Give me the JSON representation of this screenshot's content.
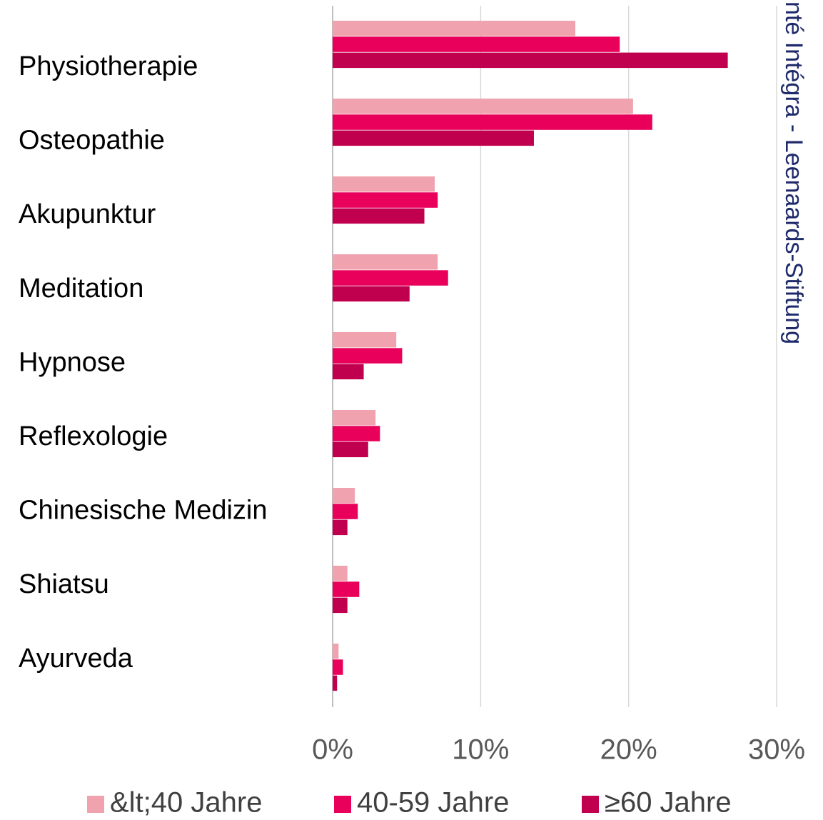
{
  "chart_data": {
    "type": "bar",
    "orientation": "horizontal",
    "categories": [
      "Physiotherapie",
      "Osteopathie",
      "Akupunktur",
      "Meditation",
      "Hypnose",
      "Reflexologie",
      "Chinesische Medizin",
      "Shiatsu",
      "Ayurveda"
    ],
    "series": [
      {
        "name": "&lt;40 Jahre",
        "color": "#f0a3ae",
        "values": [
          16.4,
          20.3,
          6.9,
          7.1,
          4.3,
          2.9,
          1.5,
          1.0,
          0.4
        ]
      },
      {
        "name": "40-59 Jahre",
        "color": "#e8005a",
        "values": [
          19.4,
          21.6,
          7.1,
          7.8,
          4.7,
          3.2,
          1.7,
          1.8,
          0.7
        ]
      },
      {
        "name": "≥60 Jahre",
        "color": "#c0004e",
        "values": [
          26.7,
          13.6,
          6.2,
          5.2,
          2.1,
          2.4,
          1.0,
          1.0,
          0.3
        ]
      }
    ],
    "xlim": [
      0,
      30
    ],
    "xticks": [
      {
        "value": 0,
        "label": "0%"
      },
      {
        "value": 10,
        "label": "10%"
      },
      {
        "value": 20,
        "label": "20%"
      },
      {
        "value": 30,
        "label": "30%"
      }
    ],
    "grid": true,
    "legend": "bottom",
    "source": "nté Intégra - Leenaards-Stiftung"
  }
}
